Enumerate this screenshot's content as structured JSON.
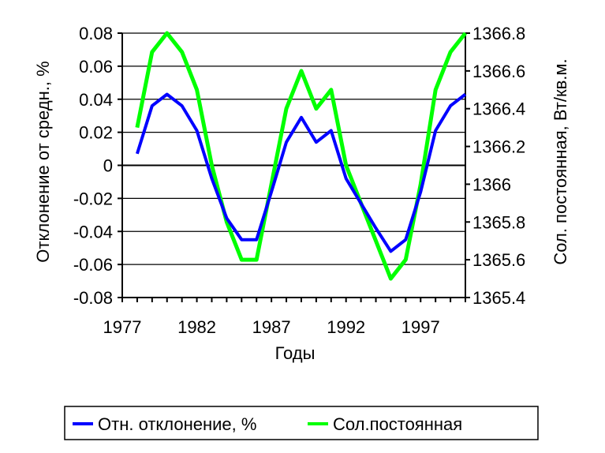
{
  "chart_data": {
    "type": "line",
    "x": [
      1978,
      1979,
      1980,
      1981,
      1982,
      1983,
      1984,
      1985,
      1986,
      1987,
      1988,
      1989,
      1990,
      1991,
      1992,
      1993,
      1994,
      1995,
      1996,
      1997,
      1998,
      1999,
      2000
    ],
    "series": [
      {
        "name": "Отн. отклонение, %",
        "axis": "left",
        "color": "#0000ff",
        "values": [
          0.007,
          0.036,
          0.043,
          0.036,
          0.021,
          -0.008,
          -0.032,
          -0.045,
          -0.045,
          -0.016,
          0.014,
          0.029,
          0.014,
          0.021,
          -0.008,
          -0.023,
          -0.038,
          -0.052,
          -0.045,
          -0.016,
          0.021,
          0.036,
          0.043
        ]
      },
      {
        "name": "Сол.постоянная",
        "axis": "right",
        "color": "#00ff00",
        "values": [
          1366.3,
          1366.7,
          1366.8,
          1366.7,
          1366.5,
          1366.1,
          1365.8,
          1365.6,
          1365.6,
          1366.0,
          1366.4,
          1366.6,
          1366.4,
          1366.5,
          1366.1,
          1365.9,
          1365.7,
          1365.5,
          1365.6,
          1366.0,
          1366.5,
          1366.7,
          1366.8
        ]
      }
    ],
    "xlabel": "Годы",
    "ylabel": "Отклонение от средн., %",
    "ylabel_right": "Сол. постоянная, Вт/кв.м.",
    "xlim": [
      1977,
      2000
    ],
    "ylim": [
      -0.08,
      0.08
    ],
    "ylim_right": [
      1365.4,
      1366.8
    ],
    "x_ticks": [
      "1977",
      "1982",
      "1987",
      "1992",
      "1997"
    ],
    "x_tick_values": [
      1977,
      1982,
      1987,
      1992,
      1997
    ],
    "y_ticks": [
      "-0.08",
      "-0.06",
      "-0.04",
      "-0.02",
      "0",
      "0.02",
      "0.04",
      "0.06",
      "0.08"
    ],
    "y_tick_values": [
      -0.08,
      -0.06,
      -0.04,
      -0.02,
      0,
      0.02,
      0.04,
      0.06,
      0.08
    ],
    "y_ticks_right": [
      "1365.4",
      "1365.6",
      "1365.8",
      "1366",
      "1366.2",
      "1366.4",
      "1366.6",
      "1366.8"
    ],
    "y_tick_values_right": [
      1365.4,
      1365.6,
      1365.8,
      1366.0,
      1366.2,
      1366.4,
      1366.6,
      1366.8
    ],
    "grid": true,
    "legend_position": "bottom"
  }
}
